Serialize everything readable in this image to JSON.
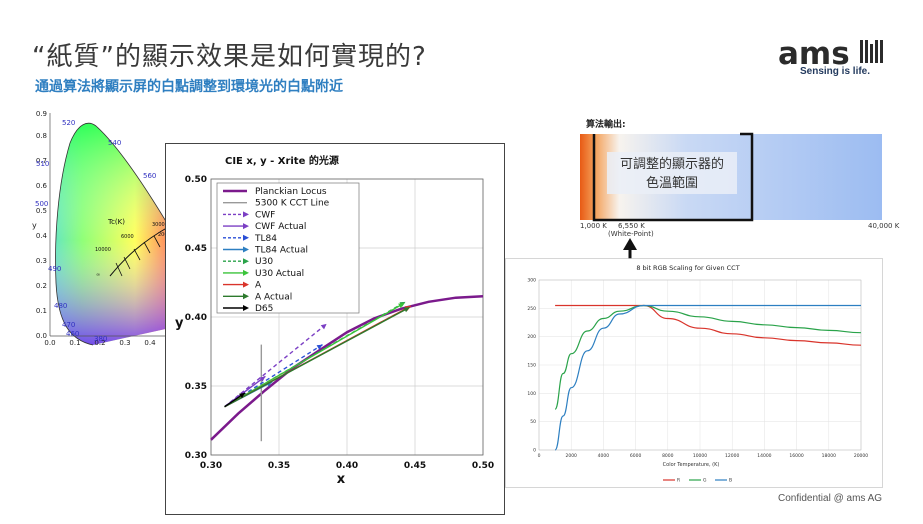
{
  "header": {
    "title": "“紙質”的顯示效果是如何實現的?",
    "subtitle": "通過算法將顯示屏的白點調整到環境光的白點附近"
  },
  "logo": {
    "brand": "ams",
    "tagline": "Sensing is life."
  },
  "footer": {
    "confidential": "Confidential @ ams AG"
  },
  "cie_diagram": {
    "x_ticks": [
      "0.0",
      "0.1",
      "0.2",
      "0.3",
      "0.4"
    ],
    "y_ticks": [
      "0.0",
      "0.1",
      "0.2",
      "0.3",
      "0.4",
      "0.5",
      "0.6",
      "0.7",
      "0.8",
      "0.9"
    ],
    "x_label": "x",
    "y_label": "y",
    "wavelengths": [
      "520",
      "540",
      "560",
      "510",
      "500",
      "490",
      "480",
      "470",
      "460",
      "380"
    ],
    "tc_label": "Tc(K)",
    "cct_labels": [
      "6000",
      "3000",
      "2000",
      "10000",
      "∞"
    ]
  },
  "cct_bar": {
    "heading": "算法輸出:",
    "label_line1": "可調整的顯示器的",
    "label_line2": "色溫範圍",
    "tick_left": "1,000 K",
    "tick_mid": "6,550 K",
    "tick_mid_note": "(White-Point)",
    "tick_right": "40,000 K"
  },
  "rgb_chart": {
    "title": "8 bit RGB Scaling for Given CCT",
    "xlabel": "Color Temperature, (K)",
    "y_ticks": [
      "0",
      "50",
      "100",
      "150",
      "200",
      "250",
      "300"
    ],
    "x_ticks": [
      "0",
      "2000",
      "4000",
      "6000",
      "8000",
      "10000",
      "12000",
      "14000",
      "16000",
      "18000",
      "20000"
    ],
    "legend": [
      {
        "name": "R",
        "color": "#d9342b"
      },
      {
        "name": "G",
        "color": "#2aa34a"
      },
      {
        "name": "B",
        "color": "#2d7fc1"
      }
    ]
  },
  "chart_data": [
    {
      "type": "line",
      "title": "CIE x, y - Xrite 的光源",
      "xlabel": "x",
      "ylabel": "y",
      "xlim": [
        0.3,
        0.5
      ],
      "ylim": [
        0.3,
        0.5
      ],
      "x_ticks": [
        "0.30",
        "0.35",
        "0.40",
        "0.45",
        "0.50"
      ],
      "y_ticks": [
        "0.30",
        "0.35",
        "0.40",
        "0.45",
        "0.50"
      ],
      "grid": true,
      "legend_position": "top-left",
      "legend": [
        {
          "name": "Planckian Locus",
          "color": "#7b1a8c",
          "style": "solid-thick"
        },
        {
          "name": "5300 K CCT Line",
          "color": "#999999",
          "style": "solid"
        },
        {
          "name": "CWF",
          "color": "#7b3fc4",
          "style": "dashed"
        },
        {
          "name": "CWF Actual",
          "color": "#7b3fc4",
          "style": "solid"
        },
        {
          "name": "TL84",
          "color": "#2a4fd6",
          "style": "dashed"
        },
        {
          "name": "TL84 Actual",
          "color": "#2d7fc1",
          "style": "solid"
        },
        {
          "name": "U30",
          "color": "#2aa34a",
          "style": "dashed"
        },
        {
          "name": "U30 Actual",
          "color": "#3ac43a",
          "style": "solid"
        },
        {
          "name": "A",
          "color": "#d9342b",
          "style": "solid"
        },
        {
          "name": "A Actual",
          "color": "#2d7a2d",
          "style": "solid"
        },
        {
          "name": "D65",
          "color": "#000000",
          "style": "solid"
        }
      ],
      "locus": {
        "x": [
          0.3,
          0.32,
          0.34,
          0.36,
          0.38,
          0.4,
          0.42,
          0.44,
          0.46,
          0.48,
          0.5
        ],
        "y": [
          0.311,
          0.33,
          0.347,
          0.363,
          0.376,
          0.389,
          0.399,
          0.406,
          0.411,
          0.414,
          0.415
        ]
      },
      "cct_line": {
        "x": [
          0.337,
          0.337
        ],
        "y": [
          0.31,
          0.38
        ]
      },
      "arrows": [
        {
          "name": "CWF",
          "from": [
            0.31,
            0.335
          ],
          "to": [
            0.385,
            0.395
          ],
          "color": "#7b3fc4",
          "dashed": true
        },
        {
          "name": "CWF Actual",
          "from": [
            0.31,
            0.335
          ],
          "to": [
            0.34,
            0.357
          ],
          "color": "#7b3fc4",
          "dashed": false
        },
        {
          "name": "TL84",
          "from": [
            0.31,
            0.335
          ],
          "to": [
            0.382,
            0.38
          ],
          "color": "#2a4fd6",
          "dashed": true
        },
        {
          "name": "TL84 Actual",
          "from": [
            0.31,
            0.335
          ],
          "to": [
            0.345,
            0.353
          ],
          "color": "#2d7fc1",
          "dashed": false
        },
        {
          "name": "U30",
          "from": [
            0.31,
            0.335
          ],
          "to": [
            0.443,
            0.411
          ],
          "color": "#2aa34a",
          "dashed": true
        },
        {
          "name": "U30 Actual",
          "from": [
            0.31,
            0.335
          ],
          "to": [
            0.442,
            0.41
          ],
          "color": "#3ac43a",
          "dashed": false
        },
        {
          "name": "A",
          "from": [
            0.31,
            0.335
          ],
          "to": [
            0.447,
            0.408
          ],
          "color": "#d9342b",
          "dashed": false
        },
        {
          "name": "A Actual",
          "from": [
            0.31,
            0.335
          ],
          "to": [
            0.446,
            0.407
          ],
          "color": "#2d7a2d",
          "dashed": false
        },
        {
          "name": "D65",
          "from": [
            0.31,
            0.335
          ],
          "to": [
            0.325,
            0.345
          ],
          "color": "#000000",
          "dashed": false
        }
      ]
    },
    {
      "type": "line",
      "title": "8 bit RGB Scaling for Given CCT",
      "xlabel": "Color Temperature, (K)",
      "xlim": [
        0,
        20000
      ],
      "ylim": [
        0,
        300
      ],
      "series": [
        {
          "name": "R",
          "x": [
            1000,
            2000,
            4000,
            6500,
            8000,
            10000,
            12000,
            14000,
            16000,
            18000,
            20000
          ],
          "values": [
            255,
            255,
            255,
            255,
            232,
            215,
            205,
            198,
            193,
            189,
            185
          ]
        },
        {
          "name": "G",
          "x": [
            1000,
            1500,
            2000,
            3000,
            4000,
            5000,
            6500,
            8000,
            10000,
            12000,
            14000,
            16000,
            18000,
            20000
          ],
          "values": [
            72,
            135,
            170,
            210,
            232,
            245,
            255,
            245,
            235,
            227,
            221,
            216,
            211,
            207
          ]
        },
        {
          "name": "B",
          "x": [
            1000,
            1500,
            2000,
            3000,
            4000,
            5000,
            6500,
            8000,
            10000,
            14000,
            20000
          ],
          "values": [
            0,
            60,
            110,
            175,
            215,
            240,
            255,
            255,
            255,
            255,
            255
          ]
        }
      ]
    }
  ]
}
